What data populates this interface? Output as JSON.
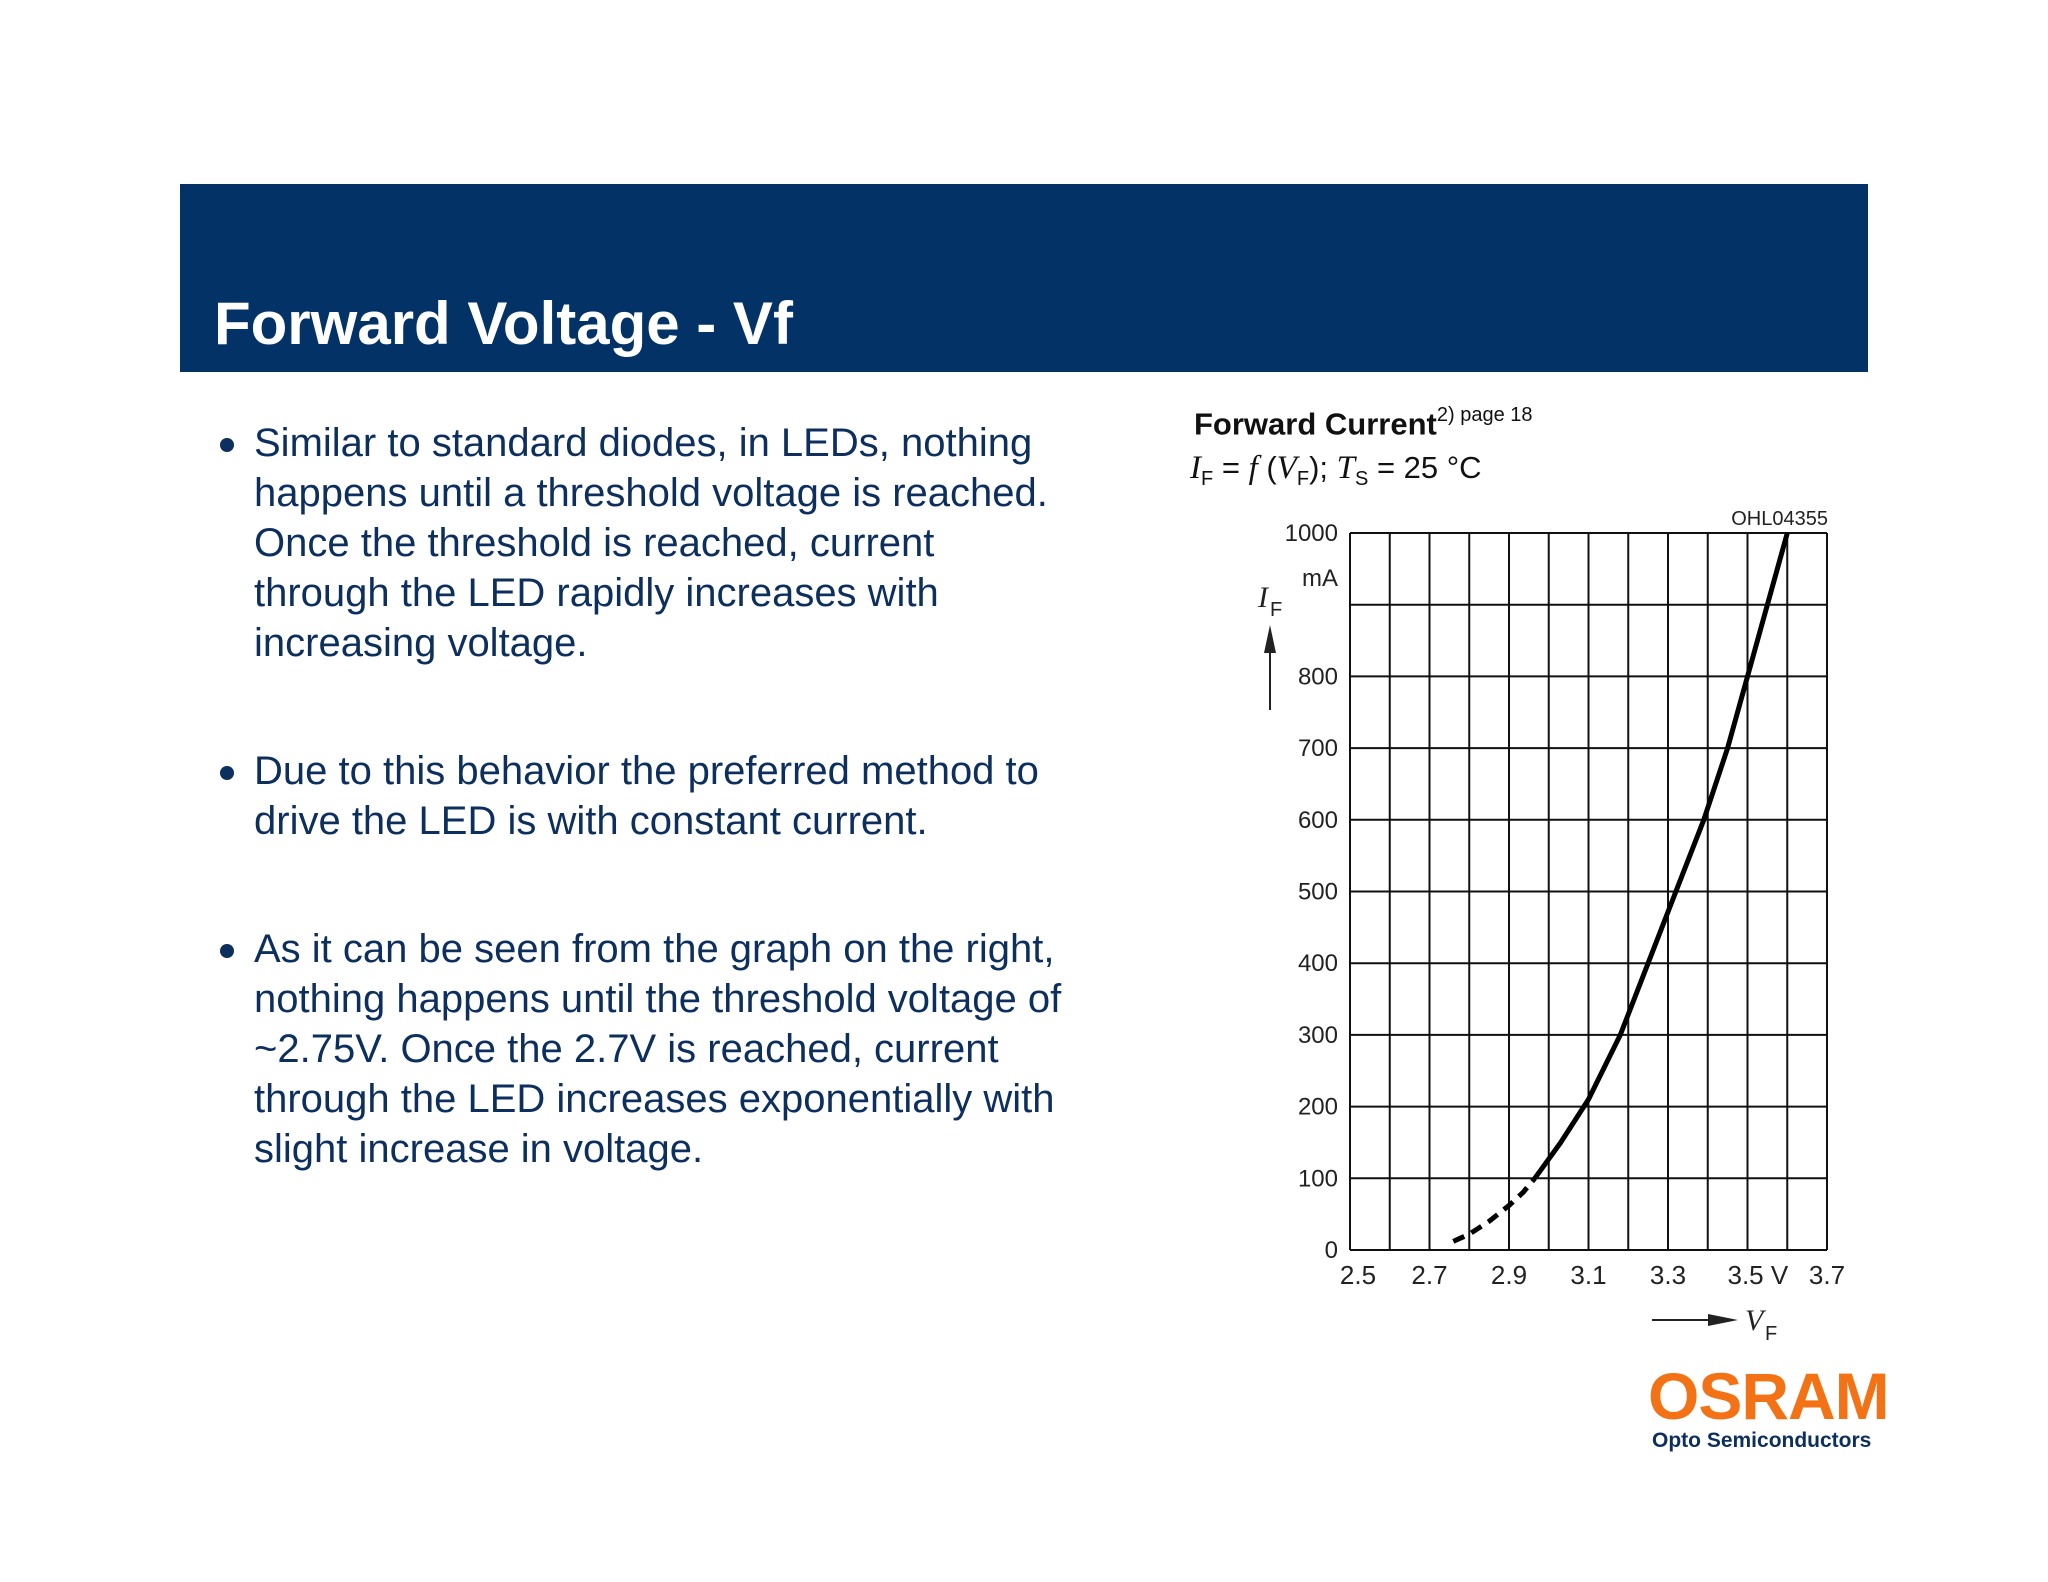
{
  "slide": {
    "title": "Forward Voltage - Vf",
    "header_color": "#033366",
    "text_color": "#0d2f5e"
  },
  "bullets": [
    {
      "text": "Similar to standard diodes, in LEDs, nothing happens until a threshold voltage is reached. Once the threshold is reached, current through the LED rapidly increases with increasing voltage."
    },
    {
      "text": "Due to this behavior the preferred method to drive the LED is with constant current."
    },
    {
      "text": "As it can be seen from the graph on the right, nothing happens until the threshold voltage of ~2.75V. Once the 2.7V is reached, current through the LED increases exponentially with slight increase in voltage."
    }
  ],
  "chart": {
    "title": "Forward Current",
    "title_sup": "2) page 18",
    "subtitle_parts": {
      "if_symbol": "I",
      "if_sub": "F",
      "eq1": " = ",
      "f_symbol": "f",
      "open": " (",
      "vf_symbol": "V",
      "vf_sub": "F",
      "close": "); ",
      "ts_symbol": "T",
      "ts_sub": "S",
      "eq2": " = 25 °C"
    },
    "figure_code": "OHL04355",
    "y_unit": "mA",
    "y_symbol": "I",
    "y_symbol_sub": "F",
    "x_unit": "V",
    "x_symbol": "V",
    "x_symbol_sub": "F"
  },
  "logo": {
    "brand": "OSRAM",
    "division": "Opto Semiconductors",
    "brand_color": "#f47216"
  },
  "chart_data": {
    "type": "line",
    "title": "Forward Current 2) page 18",
    "subtitle": "IF = f (VF); TS = 25 °C",
    "xlabel": "VF (V)",
    "ylabel": "IF (mA)",
    "xlim": [
      2.5,
      3.7
    ],
    "ylim": [
      0,
      1000
    ],
    "x_ticks": [
      2.5,
      2.7,
      2.9,
      3.1,
      3.3,
      3.5,
      3.7
    ],
    "x_tick_labels": [
      "2.5",
      "2.7",
      "2.9",
      "3.1",
      "3.3",
      "3.5 V",
      "3.7"
    ],
    "y_ticks": [
      0,
      100,
      200,
      300,
      400,
      500,
      600,
      700,
      800,
      1000
    ],
    "y_tick_labels": [
      "0",
      "100",
      "200",
      "300",
      "400",
      "500",
      "600",
      "700",
      "800",
      "1000"
    ],
    "grid": true,
    "grid_x_step": 0.1,
    "grid_y_step": 100,
    "legend": null,
    "annotation": "OHL04355",
    "series": [
      {
        "name": "IF vs VF (dashed region, extrapolated)",
        "style": "dashed",
        "x": [
          2.76,
          2.8,
          2.85,
          2.9,
          2.935,
          2.965
        ],
        "y": [
          12,
          22,
          40,
          62,
          80,
          100
        ]
      },
      {
        "name": "IF vs VF",
        "style": "solid",
        "x": [
          2.965,
          3.03,
          3.1,
          3.18,
          3.25,
          3.32,
          3.39,
          3.45,
          3.5,
          3.55,
          3.6
        ],
        "y": [
          100,
          150,
          210,
          300,
          400,
          500,
          600,
          700,
          800,
          900,
          1000
        ]
      }
    ]
  }
}
